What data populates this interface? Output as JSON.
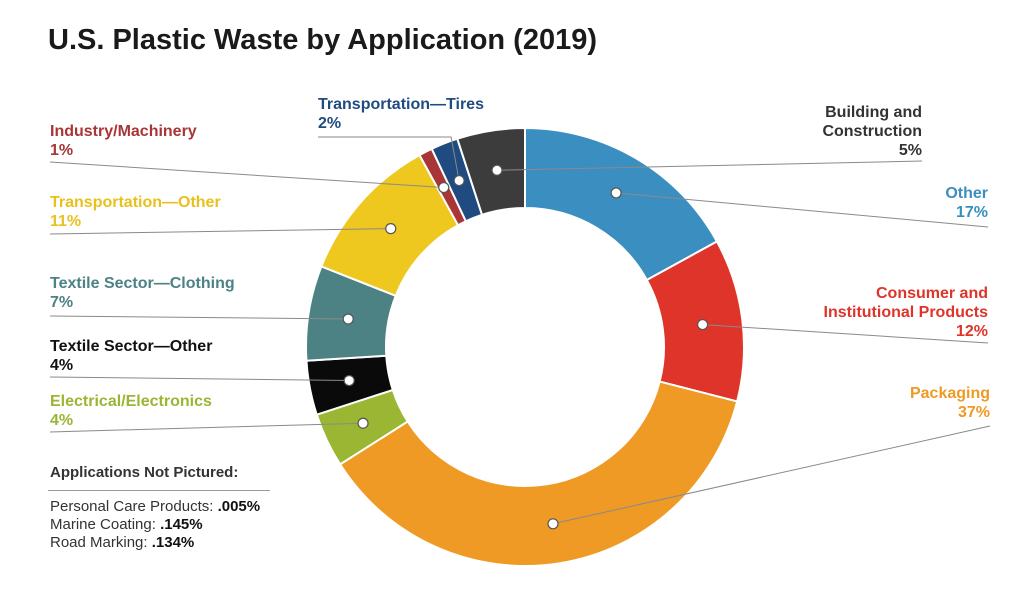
{
  "chart_data": {
    "type": "pie",
    "style": "donut",
    "title": "U.S. Plastic Waste by Application (2019)",
    "slices": [
      {
        "key": "other",
        "label": "Other",
        "lines": [
          "Other"
        ],
        "percent_label": "17%",
        "value": 17,
        "color": "#3b8fc0",
        "label_color": "#3b8fc0"
      },
      {
        "key": "consumer",
        "label": "Consumer and Institutional Products",
        "lines": [
          "Consumer and",
          "Institutional Products"
        ],
        "percent_label": "12%",
        "value": 12,
        "color": "#df3429",
        "label_color": "#df3429"
      },
      {
        "key": "packaging",
        "label": "Packaging",
        "lines": [
          "Packaging"
        ],
        "percent_label": "37%",
        "value": 37,
        "color": "#ee9a24",
        "label_color": "#ee9a24"
      },
      {
        "key": "electrical",
        "label": "Electrical/Electronics",
        "lines": [
          "Electrical/Electronics"
        ],
        "percent_label": "4%",
        "value": 4,
        "color": "#9ab633",
        "label_color": "#9ab633"
      },
      {
        "key": "textile-other",
        "label": "Textile Sector—Other",
        "lines": [
          "Textile Sector—Other"
        ],
        "percent_label": "4%",
        "value": 4,
        "color": "#0a0a0a",
        "label_color": "#111111"
      },
      {
        "key": "textile-clothing",
        "label": "Textile Sector—Clothing",
        "lines": [
          "Textile Sector—Clothing"
        ],
        "percent_label": "7%",
        "value": 7,
        "color": "#4d8285",
        "label_color": "#4d8285"
      },
      {
        "key": "transport-other",
        "label": "Transportation—Other",
        "lines": [
          "Transportation—Other"
        ],
        "percent_label": "11%",
        "value": 11,
        "color": "#eec81e",
        "label_color": "#e8c11d"
      },
      {
        "key": "industry",
        "label": "Industry/Machinery",
        "lines": [
          "Industry/Machinery"
        ],
        "percent_label": "1%",
        "value": 1,
        "color": "#a83636",
        "label_color": "#a83636"
      },
      {
        "key": "transport-tires",
        "label": "Transportation—Tires",
        "lines": [
          "Transportation—Tires"
        ],
        "percent_label": "2%",
        "value": 2,
        "color": "#1f4b80",
        "label_color": "#1f4b80"
      },
      {
        "key": "building",
        "label": "Building and Construction",
        "lines": [
          "Building and",
          "Construction"
        ],
        "percent_label": "5%",
        "value": 5,
        "color": "#3c3c3c",
        "label_color": "#333333"
      }
    ],
    "not_pictured": {
      "heading": "Applications Not Pictured:",
      "items": [
        {
          "label": "Personal Care Products: ",
          "value": ".005%"
        },
        {
          "label": "Marine Coating: ",
          "value": ".145%"
        },
        {
          "label": "Road Marking: ",
          "value": ".134%"
        }
      ]
    }
  }
}
